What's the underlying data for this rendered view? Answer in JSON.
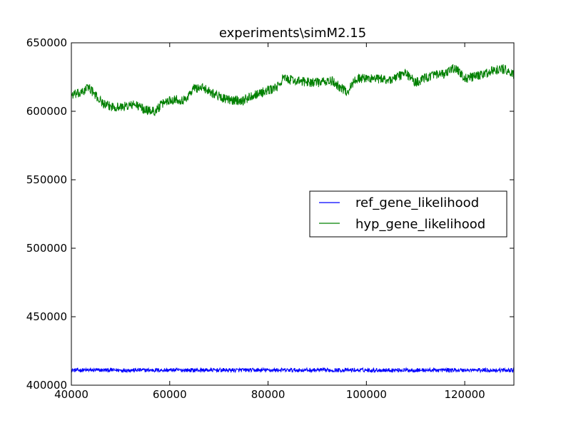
{
  "chart_data": {
    "type": "line",
    "title": "experiments\\simM2.15",
    "xlabel": "",
    "ylabel": "",
    "xlim": [
      40000,
      130000
    ],
    "ylim": [
      400000,
      650000
    ],
    "x_ticks": [
      "40000",
      "60000",
      "80000",
      "100000",
      "120000"
    ],
    "y_ticks": [
      "400000",
      "450000",
      "500000",
      "550000",
      "600000",
      "650000"
    ],
    "grid": false,
    "legend_position": "center-right",
    "series": [
      {
        "name": "ref_gene_likelihood",
        "color": "#0000ff",
        "noise": 1500,
        "points": [
          [
            40000,
            411000
          ],
          [
            50000,
            411000
          ],
          [
            60000,
            411000
          ],
          [
            70000,
            411000
          ],
          [
            80000,
            411000
          ],
          [
            90000,
            411000
          ],
          [
            100000,
            411000
          ],
          [
            110000,
            411000
          ],
          [
            120000,
            411000
          ],
          [
            130000,
            411000
          ]
        ]
      },
      {
        "name": "hyp_gene_likelihood",
        "color": "#008000",
        "noise": 3500,
        "points": [
          [
            40000,
            612000
          ],
          [
            42000,
            613000
          ],
          [
            43500,
            618000
          ],
          [
            45000,
            611000
          ],
          [
            47000,
            604000
          ],
          [
            50000,
            603000
          ],
          [
            53000,
            605000
          ],
          [
            55000,
            601000
          ],
          [
            57000,
            600000
          ],
          [
            59000,
            607000
          ],
          [
            61000,
            609000
          ],
          [
            63000,
            608000
          ],
          [
            65000,
            617000
          ],
          [
            67000,
            617000
          ],
          [
            70000,
            611000
          ],
          [
            72000,
            608000
          ],
          [
            75000,
            608000
          ],
          [
            77000,
            612000
          ],
          [
            80000,
            615000
          ],
          [
            82000,
            618000
          ],
          [
            83000,
            624000
          ],
          [
            86000,
            622000
          ],
          [
            90000,
            621000
          ],
          [
            93000,
            622000
          ],
          [
            96000,
            614000
          ],
          [
            98000,
            624000
          ],
          [
            101000,
            624000
          ],
          [
            105000,
            623000
          ],
          [
            108000,
            628000
          ],
          [
            110000,
            621000
          ],
          [
            113000,
            626000
          ],
          [
            116000,
            627000
          ],
          [
            118000,
            632000
          ],
          [
            120000,
            624000
          ],
          [
            123000,
            626000
          ],
          [
            126000,
            630000
          ],
          [
            128000,
            631000
          ],
          [
            130000,
            626000
          ]
        ]
      }
    ]
  }
}
